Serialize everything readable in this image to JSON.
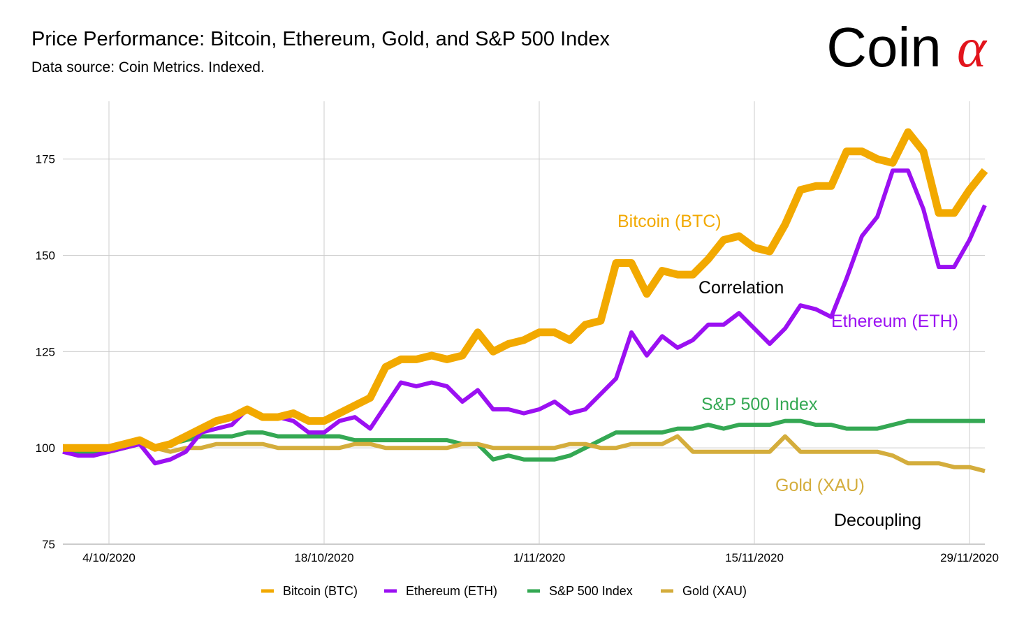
{
  "header": {
    "title": "Price Performance: Bitcoin, Ethereum, Gold, and S&P 500 Index",
    "subtitle": "Data source: Coin Metrics. Indexed."
  },
  "logo": {
    "text": "Coin",
    "symbol": "α",
    "symbol_color": "#e2141c"
  },
  "chart_data": {
    "type": "line",
    "title": "Price Performance: Bitcoin, Ethereum, Gold, and S&P 500 Index",
    "subtitle": "Data source: Coin Metrics. Indexed.",
    "xlabel": "",
    "ylabel": "",
    "x_start": "2020-10-01",
    "x_end": "2020-11-30",
    "x_ticks": [
      "4/10/2020",
      "18/10/2020",
      "1/11/2020",
      "15/11/2020",
      "29/11/2020"
    ],
    "y_ticks": [
      75,
      100,
      125,
      150,
      175
    ],
    "ylim": [
      75,
      190
    ],
    "grid": true,
    "legend": "bottom",
    "x": [
      "1/10",
      "2/10",
      "3/10",
      "4/10",
      "5/10",
      "6/10",
      "7/10",
      "8/10",
      "9/10",
      "10/10",
      "11/10",
      "12/10",
      "13/10",
      "14/10",
      "15/10",
      "16/10",
      "17/10",
      "18/10",
      "19/10",
      "20/10",
      "21/10",
      "22/10",
      "23/10",
      "24/10",
      "25/10",
      "26/10",
      "27/10",
      "28/10",
      "29/10",
      "30/10",
      "31/10",
      "1/11",
      "2/11",
      "3/11",
      "4/11",
      "5/11",
      "6/11",
      "7/11",
      "8/11",
      "9/11",
      "10/11",
      "11/11",
      "12/11",
      "13/11",
      "14/11",
      "15/11",
      "16/11",
      "17/11",
      "18/11",
      "19/11",
      "20/11",
      "21/11",
      "22/11",
      "23/11",
      "24/11",
      "25/11",
      "26/11",
      "27/11",
      "28/11",
      "29/11",
      "30/11"
    ],
    "series": [
      {
        "name": "Bitcoin (BTC)",
        "color": "#f2a900",
        "width": 11,
        "values": [
          100,
          100,
          100,
          100,
          101,
          102,
          100,
          101,
          103,
          105,
          107,
          108,
          110,
          108,
          108,
          109,
          107,
          107,
          109,
          111,
          113,
          121,
          123,
          123,
          124,
          123,
          124,
          130,
          125,
          127,
          128,
          130,
          130,
          128,
          132,
          133,
          148,
          148,
          140,
          146,
          145,
          145,
          149,
          154,
          155,
          152,
          151,
          158,
          167,
          168,
          168,
          177,
          177,
          175,
          174,
          182,
          177,
          161,
          161,
          167,
          172
        ]
      },
      {
        "name": "Ethereum (ETH)",
        "color": "#9b10f2",
        "width": 6,
        "values": [
          99,
          98,
          98,
          99,
          100,
          101,
          96,
          97,
          99,
          104,
          105,
          106,
          110,
          108,
          108,
          107,
          104,
          104,
          107,
          108,
          105,
          111,
          117,
          116,
          117,
          116,
          112,
          115,
          110,
          110,
          109,
          110,
          112,
          109,
          110,
          114,
          118,
          130,
          124,
          129,
          126,
          128,
          132,
          132,
          135,
          131,
          127,
          131,
          137,
          136,
          134,
          144,
          155,
          160,
          172,
          172,
          162,
          147,
          147,
          154,
          163
        ]
      },
      {
        "name": "S&P 500 Index",
        "color": "#34a853",
        "width": 6,
        "values": [
          99,
          99,
          99,
          99,
          100,
          101,
          100,
          101,
          102,
          103,
          103,
          103,
          104,
          104,
          103,
          103,
          103,
          103,
          103,
          102,
          102,
          102,
          102,
          102,
          102,
          102,
          101,
          101,
          97,
          98,
          97,
          97,
          97,
          98,
          100,
          102,
          104,
          104,
          104,
          104,
          105,
          105,
          106,
          105,
          106,
          106,
          106,
          107,
          107,
          106,
          106,
          105,
          105,
          105,
          106,
          107,
          107,
          107,
          107,
          107,
          107
        ]
      },
      {
        "name": "Gold (XAU)",
        "color": "#d4ad3c",
        "width": 6,
        "values": [
          100,
          100,
          100,
          100,
          100,
          101,
          100,
          99,
          100,
          100,
          101,
          101,
          101,
          101,
          100,
          100,
          100,
          100,
          100,
          101,
          101,
          100,
          100,
          100,
          100,
          100,
          101,
          101,
          100,
          100,
          100,
          100,
          100,
          101,
          101,
          100,
          100,
          101,
          101,
          101,
          103,
          99,
          99,
          99,
          99,
          99,
          99,
          103,
          99,
          99,
          99,
          99,
          99,
          99,
          98,
          96,
          96,
          96,
          95,
          95,
          94
        ]
      }
    ],
    "annotations": [
      {
        "text": "Bitcoin (BTC)",
        "color": "#f2a900"
      },
      {
        "text": "Correlation",
        "color": "#000000"
      },
      {
        "text": "Ethereum (ETH)",
        "color": "#9b10f2"
      },
      {
        "text": "S&P 500 Index",
        "color": "#34a853"
      },
      {
        "text": "Gold (XAU)",
        "color": "#d4ad3c"
      },
      {
        "text": "Decoupling",
        "color": "#000000"
      }
    ]
  }
}
